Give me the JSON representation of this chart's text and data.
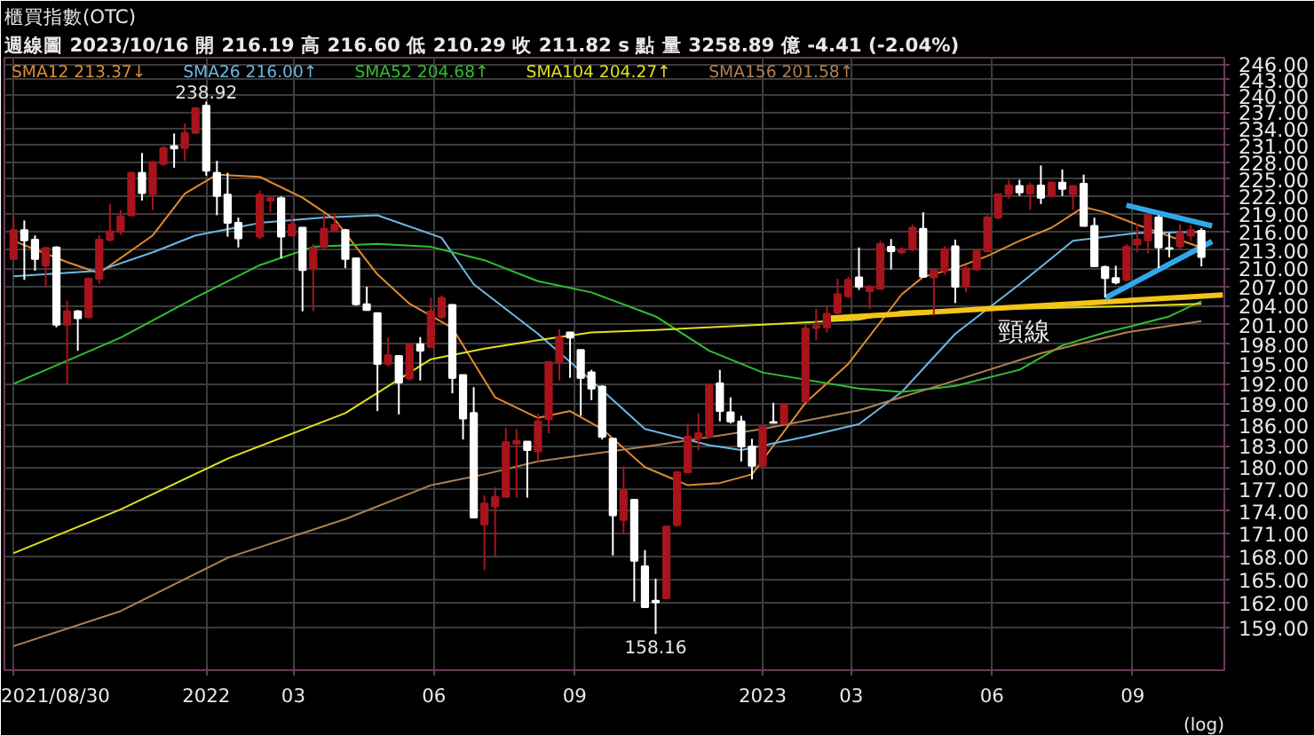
{
  "chart_data": {
    "type": "candlestick",
    "title": "櫃買指數(OTC)",
    "subtitle": "週線圖 2023/10/16 開 216.19 高 216.60 低 210.29 收 211.82 s 點 量 3258.89 億 -4.41 (-2.04%)",
    "colors": [
      "#a8141c",
      "#ffffff",
      "#ffffff",
      "#a8141c",
      "#ffffff",
      "#a8141c",
      "#ffffff",
      "#a8141c",
      "#a8141c",
      "#a8141c",
      "#a8141c",
      "#a8141c",
      "#ffffff",
      "#a8141c",
      "#a8141c",
      "#ffffff",
      "#a8141c",
      "#a8141c",
      "#ffffff",
      "#ffffff",
      "#ffffff",
      "#ffffff",
      "#a8141c",
      "#a8141c",
      "#ffffff",
      "#a8141c",
      "#ffffff",
      "#a8141c",
      "#a8141c",
      "#a8141c",
      "#ffffff",
      "#ffffff",
      "#ffffff",
      "#ffffff",
      "#a8141c",
      "#ffffff",
      "#a8141c",
      "#ffffff",
      "#a8141c",
      "#a8141c",
      "#ffffff",
      "#ffffff",
      "#ffffff",
      "#a8141c",
      "#a8141c",
      "#a8141c",
      "#a8141c",
      "#ffffff",
      "#a8141c",
      "#a8141c",
      "#a8141c",
      "#ffffff",
      "#ffffff",
      "#ffffff",
      "#ffffff",
      "#ffffff",
      "#a8141c",
      "#ffffff",
      "#ffffff",
      "#ffffff",
      "#a8141c",
      "#a8141c",
      "#a8141c",
      "#a8141c",
      "#a8141c",
      "#ffffff",
      "#ffffff",
      "#ffffff",
      "#ffffff",
      "#a8141c",
      "#ffffff",
      "#a8141c",
      "#a8141c",
      "#a8141c",
      "#a8141c",
      "#a8141c",
      "#a8141c",
      "#ffffff",
      "#a8141c",
      "#a8141c",
      "#ffffff",
      "#a8141c",
      "#a8141c",
      "#ffffff",
      "#a8141c",
      "#a8141c",
      "#ffffff",
      "#a8141c",
      "#a8141c",
      "#a8141c",
      "#a8141c",
      "#a8141c",
      "#ffffff",
      "#a8141c",
      "#ffffff",
      "#a8141c",
      "#ffffff",
      "#a8141c",
      "#ffffff",
      "#ffffff",
      "#ffffff",
      "#ffffff",
      "#a8141c",
      "#a8141c",
      "#a8141c",
      "#ffffff",
      "#ffffff",
      "#a8141c",
      "#a8141c",
      "#ffffff"
    ],
    "x": [
      "2021-08-30",
      "2021-09-06",
      "2021-09-13",
      "2021-09-20",
      "2021-09-27",
      "2021-10-04",
      "2021-10-11",
      "2021-10-18",
      "2021-10-25",
      "2021-11-01",
      "2021-11-08",
      "2021-11-15",
      "2021-11-22",
      "2021-11-29",
      "2021-12-06",
      "2021-12-13",
      "2021-12-20",
      "2021-12-27",
      "2022-01-03",
      "2022-01-10",
      "2022-01-17",
      "2022-01-24",
      "2022-02-07",
      "2022-02-14",
      "2022-02-21",
      "2022-02-28",
      "2022-03-07",
      "2022-03-14",
      "2022-03-21",
      "2022-03-28",
      "2022-04-04",
      "2022-04-11",
      "2022-04-18",
      "2022-04-25",
      "2022-05-02",
      "2022-05-09",
      "2022-05-16",
      "2022-05-23",
      "2022-05-30",
      "2022-06-06",
      "2022-06-13",
      "2022-06-20",
      "2022-06-27",
      "2022-07-04",
      "2022-07-11",
      "2022-07-18",
      "2022-07-25",
      "2022-08-01",
      "2022-08-08",
      "2022-08-15",
      "2022-08-22",
      "2022-08-29",
      "2022-09-05",
      "2022-09-12",
      "2022-09-19",
      "2022-09-26",
      "2022-10-03",
      "2022-10-10",
      "2022-10-17",
      "2022-10-24",
      "2022-10-31",
      "2022-11-07",
      "2022-11-14",
      "2022-11-21",
      "2022-11-28",
      "2022-12-05",
      "2022-12-12",
      "2022-12-19",
      "2022-12-26",
      "2023-01-02",
      "2023-01-09",
      "2023-01-16",
      "2023-01-30",
      "2023-02-06",
      "2023-02-13",
      "2023-02-20",
      "2023-02-27",
      "2023-03-06",
      "2023-03-13",
      "2023-03-20",
      "2023-03-27",
      "2023-04-03",
      "2023-04-10",
      "2023-04-17",
      "2023-04-24",
      "2023-05-01",
      "2023-05-08",
      "2023-05-15",
      "2023-05-22",
      "2023-05-29",
      "2023-06-05",
      "2023-06-12",
      "2023-06-19",
      "2023-06-26",
      "2023-07-03",
      "2023-07-10",
      "2023-07-17",
      "2023-07-24",
      "2023-07-31",
      "2023-08-07",
      "2023-08-14",
      "2023-08-21",
      "2023-08-28",
      "2023-09-04",
      "2023-09-11",
      "2023-09-18",
      "2023-09-25",
      "2023-10-02",
      "2023-10-09",
      "2023-10-16"
    ],
    "ohlc": [
      [
        211.5,
        218.5,
        211.5,
        216.3
      ],
      [
        216.3,
        217.9,
        208.1,
        214.6
      ],
      [
        214.7,
        215.4,
        209.6,
        211.5
      ],
      [
        210.4,
        213.5,
        207,
        213.3
      ],
      [
        213.4,
        213.6,
        200.6,
        201
      ],
      [
        201,
        204.8,
        191.8,
        203.1
      ],
      [
        203.1,
        203.3,
        197,
        202
      ],
      [
        202.2,
        208.5,
        202,
        208.3
      ],
      [
        208.3,
        215.4,
        207.5,
        214.7
      ],
      [
        214.7,
        220.7,
        214.4,
        216.1
      ],
      [
        216,
        219.7,
        215.5,
        218.6
      ],
      [
        218.8,
        226.3,
        218.6,
        226.1
      ],
      [
        226.1,
        229.6,
        221.3,
        222.6
      ],
      [
        222.4,
        228.2,
        219.7,
        228
      ],
      [
        227.7,
        230.8,
        227.3,
        230.5
      ],
      [
        230.8,
        233.1,
        227,
        230.4
      ],
      [
        230.5,
        234.9,
        228.2,
        233.2
      ],
      [
        233.2,
        237.9,
        233,
        237.7
      ],
      [
        238.2,
        238.92,
        225.6,
        226.5
      ],
      [
        226.1,
        228.2,
        218.8,
        222.1
      ],
      [
        222.3,
        226.1,
        215.2,
        217.5
      ],
      [
        217.5,
        218.4,
        213.4,
        214.9
      ],
      [
        215.2,
        223,
        214.8,
        222.3
      ],
      [
        221.3,
        222,
        219.3,
        221.7
      ],
      [
        221.7,
        222,
        211.6,
        215.2
      ],
      [
        215.4,
        218.8,
        215.2,
        217.2
      ],
      [
        216.7,
        216.7,
        203.1,
        209.7
      ],
      [
        210,
        214,
        203.1,
        213.3
      ],
      [
        213.5,
        219,
        213.1,
        216.5
      ],
      [
        216.3,
        219,
        216,
        217.2
      ],
      [
        216.3,
        216.5,
        210,
        211.5
      ],
      [
        211.6,
        211.6,
        204,
        204.2
      ],
      [
        204.2,
        207,
        203.3,
        203.3
      ],
      [
        202.8,
        202.8,
        188,
        195
      ],
      [
        195,
        199,
        194.6,
        196.3
      ],
      [
        196.2,
        196.2,
        187.5,
        192.2
      ],
      [
        192.8,
        198.1,
        192.5,
        198
      ],
      [
        198,
        199.1,
        192.5,
        197
      ],
      [
        197.6,
        205.3,
        197.4,
        203.1
      ],
      [
        202.2,
        205.6,
        201.9,
        205.2
      ],
      [
        204.1,
        204.1,
        190.6,
        192.9
      ],
      [
        193.3,
        193.3,
        183.9,
        186.9
      ],
      [
        187.7,
        191.5,
        173,
        173.1
      ],
      [
        172.2,
        176.1,
        166.2,
        175
      ],
      [
        174.6,
        177.2,
        168,
        175.9
      ],
      [
        175.9,
        185.6,
        175.8,
        183.5
      ],
      [
        183.3,
        185.4,
        175.8,
        183.7
      ],
      [
        183.6,
        183.6,
        175.8,
        182.4
      ],
      [
        182.2,
        187.6,
        180.8,
        186.5
      ],
      [
        186.8,
        195.3,
        184.8,
        195.3
      ],
      [
        195.3,
        200.3,
        192.5,
        199
      ],
      [
        199.8,
        199.8,
        192.9,
        199
      ],
      [
        197.1,
        197.1,
        187.3,
        192.9
      ],
      [
        193.7,
        194.1,
        189.6,
        191.3
      ],
      [
        191.6,
        191.8,
        183.9,
        184.3
      ],
      [
        184,
        184,
        168.1,
        173.4
      ],
      [
        172.8,
        180.1,
        171,
        176.8
      ],
      [
        175.5,
        175.5,
        162.2,
        167.4
      ],
      [
        166.7,
        168.8,
        161.5,
        161.5
      ],
      [
        162.3,
        165.1,
        158.16,
        162.1
      ],
      [
        162.6,
        171.9,
        162.5,
        171.9
      ],
      [
        172.1,
        179.4,
        171.9,
        179.3
      ],
      [
        179.3,
        186.2,
        179.2,
        184.3
      ],
      [
        184,
        187.7,
        182.4,
        184.8
      ],
      [
        184.3,
        192.1,
        184.1,
        191.8
      ],
      [
        192.1,
        194.1,
        186.5,
        188
      ],
      [
        187.8,
        190,
        186.2,
        186.5
      ],
      [
        186.5,
        187.3,
        180.8,
        182.9
      ],
      [
        182.9,
        184,
        178.3,
        180.2
      ],
      [
        180.2,
        185.9,
        180.1,
        185.8
      ],
      [
        186.4,
        189.2,
        186.2,
        186.3
      ],
      [
        186.2,
        189,
        186,
        189
      ],
      [
        189.4,
        201,
        189.3,
        200.4
      ],
      [
        200.5,
        203.5,
        198.6,
        200.8
      ],
      [
        200.6,
        203.9,
        199.8,
        202.7
      ],
      [
        202.9,
        208.3,
        202.6,
        205.8
      ],
      [
        205.5,
        208.7,
        205.2,
        208.1
      ],
      [
        208.5,
        213.4,
        206.5,
        207
      ],
      [
        206.3,
        207.3,
        203.5,
        207
      ],
      [
        206.7,
        214.5,
        206.5,
        214
      ],
      [
        213.5,
        214.8,
        209.8,
        212.8
      ],
      [
        212.6,
        213.4,
        212.3,
        213.1
      ],
      [
        213.1,
        217.2,
        212.7,
        216.7
      ],
      [
        216.5,
        219.3,
        208.5,
        208.6
      ],
      [
        208.5,
        209.7,
        202.4,
        209.7
      ],
      [
        209.6,
        213.6,
        208.9,
        213.1
      ],
      [
        213.6,
        214.7,
        204.4,
        207
      ],
      [
        207,
        210.4,
        206.1,
        210
      ],
      [
        209.8,
        213.1,
        209.6,
        212.8
      ],
      [
        212.8,
        218.8,
        212.6,
        218.4
      ],
      [
        218.4,
        222.5,
        218.1,
        222.4
      ],
      [
        222.4,
        224.9,
        221.6,
        223.9
      ],
      [
        223.8,
        224.9,
        222.1,
        222.7
      ],
      [
        222.5,
        224.4,
        219.7,
        223.9
      ],
      [
        223.9,
        227.4,
        220.7,
        221.8
      ],
      [
        222.1,
        224.6,
        221.8,
        224.4
      ],
      [
        224.4,
        226.7,
        222.1,
        223.3
      ],
      [
        222.4,
        223.9,
        219.7,
        223.8
      ],
      [
        224.2,
        225.8,
        217,
        217
      ],
      [
        217,
        218.4,
        210.2,
        210.3
      ],
      [
        210.2,
        210.4,
        205.3,
        208.4
      ],
      [
        208.4,
        210.4,
        207.4,
        207.7
      ],
      [
        208.1,
        214,
        207.9,
        213.5
      ],
      [
        213.9,
        217.4,
        212.6,
        214.7
      ],
      [
        214.6,
        219,
        212.4,
        218.8
      ],
      [
        218.4,
        218.8,
        210,
        213.4
      ],
      [
        213.3,
        215.8,
        211.8,
        213.2
      ],
      [
        213.6,
        217.3,
        213.2,
        215.8
      ],
      [
        215.4,
        217.2,
        214.5,
        216.3
      ],
      [
        216.19,
        216.6,
        210.29,
        211.82
      ]
    ],
    "series": [
      {
        "name": "SMA12 213.37↓",
        "type": "line",
        "color": "#e08a30",
        "x": [
          "2021-08-30",
          "2021-10-04",
          "2021-10-25",
          "2021-11-29",
          "2021-12-20",
          "2022-01-10",
          "2022-02-07",
          "2022-03-07",
          "2022-03-28",
          "2022-04-25",
          "2022-05-16",
          "2022-06-13",
          "2022-07-11",
          "2022-08-08",
          "2022-08-29",
          "2022-09-19",
          "2022-10-17",
          "2022-11-14",
          "2022-12-05",
          "2022-12-26",
          "2023-01-30",
          "2023-02-27",
          "2023-04-03",
          "2023-04-17",
          "2023-05-08",
          "2023-05-29",
          "2023-06-19",
          "2023-07-10",
          "2023-07-31",
          "2023-08-14",
          "2023-09-04",
          "2023-10-16"
        ],
        "values": [
          214.5,
          211,
          209.2,
          215.4,
          222.5,
          225.8,
          225.4,
          221.8,
          218.1,
          209,
          204.3,
          200.5,
          190,
          187,
          188,
          185.4,
          180,
          177.5,
          177.8,
          179,
          189.2,
          195,
          205.8,
          208.6,
          210,
          212,
          214.5,
          216.7,
          220.2,
          219.3,
          217.2,
          213.37
        ]
      },
      {
        "name": "SMA26 216.00↑",
        "type": "line",
        "color": "#6cb8e4",
        "x": [
          "2021-08-30",
          "2021-10-25",
          "2021-11-29",
          "2021-12-27",
          "2022-02-07",
          "2022-03-21",
          "2022-04-25",
          "2022-06-06",
          "2022-06-27",
          "2022-08-08",
          "2022-09-12",
          "2022-10-17",
          "2022-11-28",
          "2022-12-19",
          "2023-01-30",
          "2023-03-06",
          "2023-04-03",
          "2023-05-08",
          "2023-06-19",
          "2023-07-24",
          "2023-09-04",
          "2023-10-16"
        ],
        "values": [
          208.7,
          209.6,
          212.6,
          215.4,
          217.5,
          218.4,
          218.8,
          215,
          207.4,
          199.6,
          192.5,
          185.4,
          183.1,
          182.4,
          184.3,
          186.1,
          190.8,
          199.6,
          207.4,
          214.5,
          215.8,
          216.0
        ]
      },
      {
        "name": "SMA52 204.68↑",
        "type": "line",
        "color": "#30c030",
        "x": [
          "2021-08-30",
          "2021-11-08",
          "2021-12-27",
          "2022-02-07",
          "2022-03-14",
          "2022-04-25",
          "2022-05-30",
          "2022-07-04",
          "2022-08-08",
          "2022-09-12",
          "2022-10-24",
          "2022-11-28",
          "2023-01-02",
          "2023-03-06",
          "2023-04-03",
          "2023-05-08",
          "2023-06-19",
          "2023-07-17",
          "2023-08-14",
          "2023-09-04",
          "2023-09-25",
          "2023-10-16"
        ],
        "values": [
          192,
          199,
          205.3,
          210.5,
          213.5,
          214,
          213.5,
          211.3,
          207.9,
          206.1,
          202.3,
          197,
          193.7,
          191.3,
          190.8,
          191.7,
          194.1,
          197.8,
          199.8,
          201,
          202.3,
          204.68
        ]
      },
      {
        "name": "SMA104 204.27↑",
        "type": "line",
        "color": "#e0e020",
        "x": [
          "2021-08-30",
          "2021-11-08",
          "2022-01-17",
          "2022-04-04",
          "2022-05-30",
          "2022-07-04",
          "2022-08-08",
          "2022-09-12",
          "2022-10-24",
          "2023-01-02",
          "2023-03-06",
          "2023-04-03",
          "2023-06-19",
          "2023-08-28",
          "2023-10-16"
        ],
        "values": [
          168.4,
          174.2,
          181.2,
          187.7,
          195.7,
          197.3,
          198.6,
          199.8,
          200.2,
          201,
          201.8,
          203.1,
          203.5,
          203.9,
          204.27
        ]
      },
      {
        "name": "SMA156 201.58↑",
        "type": "line",
        "color": "#b08050",
        "x": [
          "2021-08-30",
          "2021-11-08",
          "2022-01-17",
          "2022-04-04",
          "2022-05-30",
          "2022-07-04",
          "2022-08-08",
          "2022-10-24",
          "2023-01-02",
          "2023-03-06",
          "2023-05-08",
          "2023-07-03",
          "2023-08-28",
          "2023-10-16"
        ],
        "values": [
          156.7,
          161,
          167.8,
          172.9,
          177.5,
          179,
          180.8,
          183.1,
          185.4,
          188.1,
          192.5,
          196.6,
          199.8,
          201.58
        ]
      },
      {
        "name": "頸線",
        "type": "line",
        "color": "#f4c418",
        "x": [
          "2023-02-13",
          "2023-10-30"
        ],
        "values": [
          202.0,
          205.7
        ]
      },
      {
        "type": "line",
        "color": "#30a8e8",
        "x": [
          "2023-08-28",
          "2023-10-23"
        ],
        "values": [
          220.5,
          217.0
        ]
      },
      {
        "type": "line",
        "color": "#30a8e8",
        "x": [
          "2023-08-14",
          "2023-10-23"
        ],
        "values": [
          205.2,
          214.4
        ]
      }
    ],
    "annotations": [
      {
        "text": "238.92",
        "x": "2022-01-03",
        "y": 238.92
      },
      {
        "text": "158.16",
        "x": "2022-10-24",
        "y": 158.16
      },
      "(log)"
    ],
    "log": "y",
    "legend": "top left",
    "grid": true,
    "xlim": [
      "2021-08-24",
      "2023-10-31"
    ],
    "xticks": [
      {
        "value": "2021-08-30",
        "label": "2021/08/30"
      },
      {
        "value": "2022-01-03",
        "label": "2022"
      },
      {
        "value": "2022-03-01",
        "label": "03"
      },
      {
        "value": "2022-06-01",
        "label": "06"
      },
      {
        "value": "2022-09-01",
        "label": "09"
      },
      {
        "value": "2023-01-02",
        "label": "2023"
      },
      {
        "value": "2023-03-01",
        "label": "03"
      },
      {
        "value": "2023-06-01",
        "label": "06"
      },
      {
        "value": "2023-09-01",
        "label": "09"
      }
    ],
    "ylim": [
      153.8,
      247.2
    ],
    "yticks": [
      {
        "value": 159,
        "label": "159.00"
      },
      {
        "value": 162,
        "label": "162.00"
      },
      {
        "value": 165,
        "label": "165.00"
      },
      {
        "value": 168,
        "label": "168.00"
      },
      {
        "value": 171,
        "label": "171.00"
      },
      {
        "value": 174,
        "label": "174.00"
      },
      {
        "value": 177,
        "label": "177.00"
      },
      {
        "value": 180,
        "label": "180.00"
      },
      {
        "value": 183,
        "label": "183.00"
      },
      {
        "value": 186,
        "label": "186.00"
      },
      {
        "value": 189,
        "label": "189.00"
      },
      {
        "value": 192,
        "label": "192.00"
      },
      {
        "value": 195,
        "label": "195.00"
      },
      {
        "value": 198,
        "label": "198.00"
      },
      {
        "value": 201,
        "label": "201.00"
      },
      {
        "value": 204,
        "label": "204.00"
      },
      {
        "value": 207,
        "label": "207.00"
      },
      {
        "value": 210,
        "label": "210.00"
      },
      {
        "value": 213,
        "label": "213.00"
      },
      {
        "value": 216,
        "label": "216.00"
      },
      {
        "value": 219,
        "label": "219.00"
      },
      {
        "value": 222,
        "label": "222.00"
      },
      {
        "value": 225,
        "label": "225.00"
      },
      {
        "value": 228,
        "label": "228.00"
      },
      {
        "value": 231,
        "label": "231.00"
      },
      {
        "value": 234,
        "label": "234.00"
      },
      {
        "value": 237,
        "label": "237.00"
      },
      {
        "value": 240,
        "label": "240.00"
      },
      {
        "value": 243,
        "label": "243.00"
      },
      {
        "value": 246,
        "label": "246.00"
      }
    ]
  }
}
